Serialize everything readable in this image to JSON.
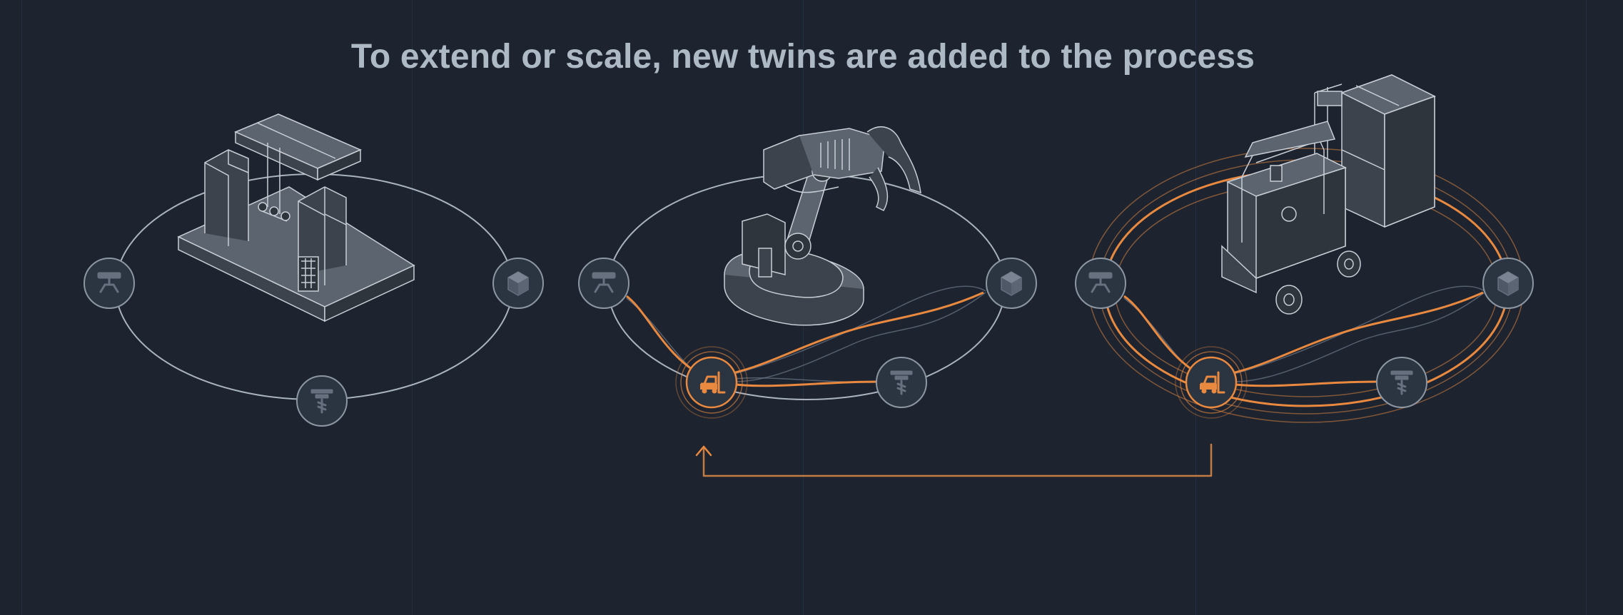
{
  "headline": "To extend or scale, new twins are added to the process",
  "colors": {
    "background": "#1d2430",
    "accent": "#e8893f",
    "outline": "#a9b3bf",
    "node_fill": "#2b3441",
    "icon": "#66707f"
  },
  "stages": [
    {
      "machine": "gantry-robot",
      "nodes": [
        "gripper-icon",
        "box-icon",
        "drill-icon"
      ],
      "active_node": null
    },
    {
      "machine": "robotic-arm",
      "nodes": [
        "gripper-icon",
        "box-icon",
        "drill-icon",
        "forklift-icon"
      ],
      "active_node": "forklift-icon"
    },
    {
      "machine": "forklift",
      "nodes": [
        "gripper-icon",
        "box-icon",
        "drill-icon",
        "forklift-icon"
      ],
      "active_node": "forklift-icon"
    }
  ],
  "connector": "forklift-icon"
}
